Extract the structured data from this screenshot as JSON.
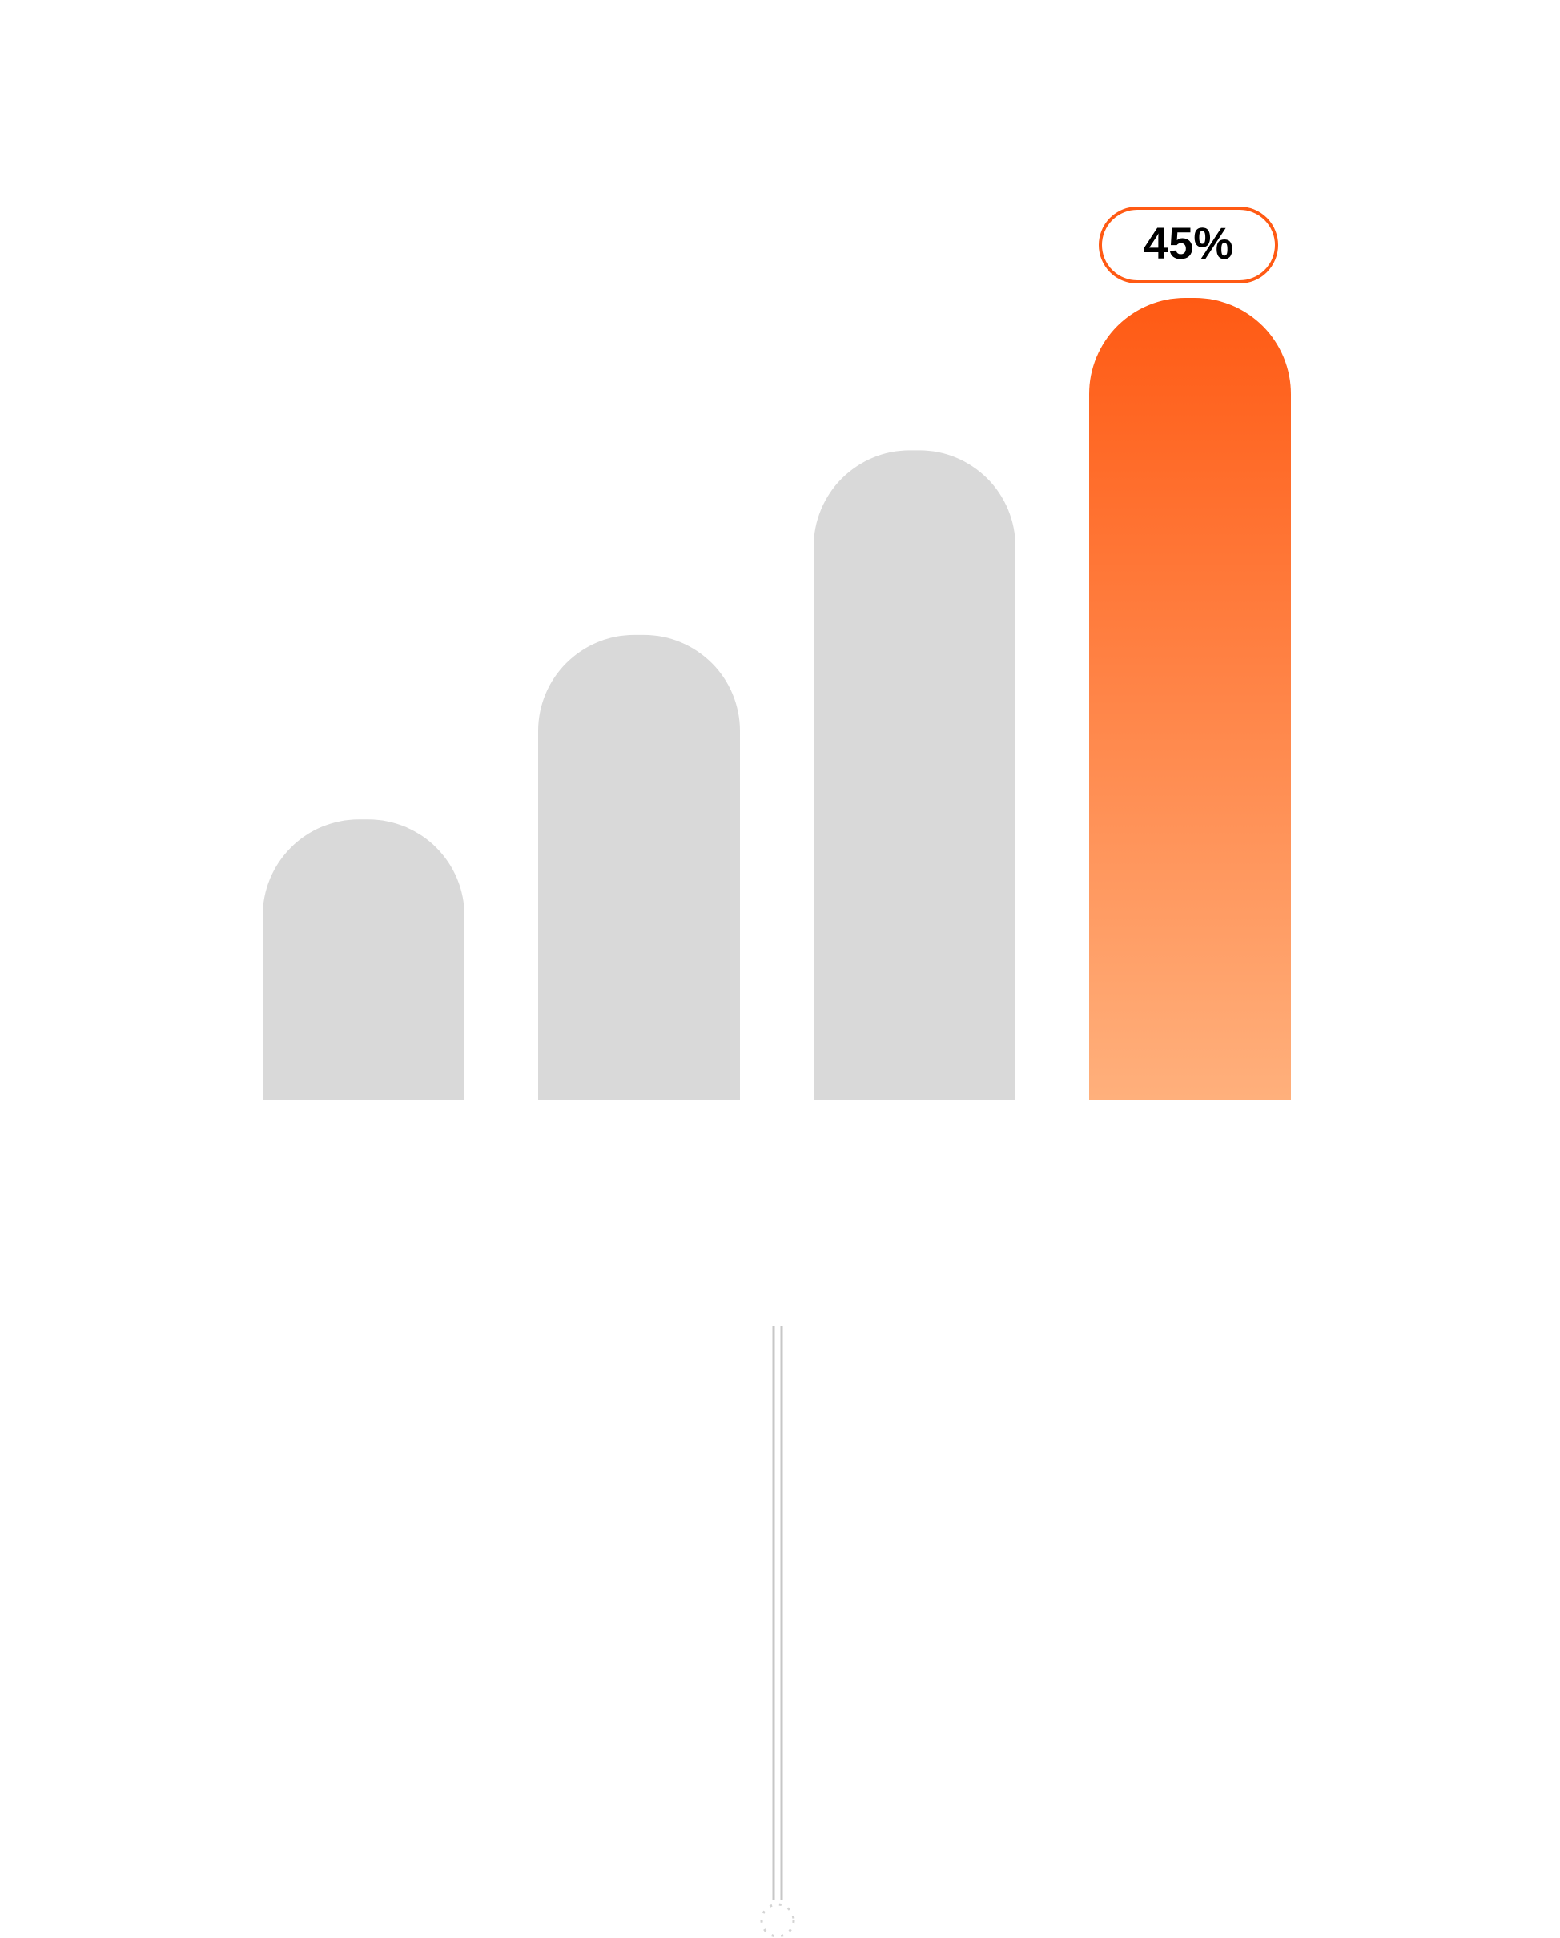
{
  "chart_data": {
    "type": "bar",
    "categories": [
      "",
      "",
      "",
      ""
    ],
    "values": [
      35,
      58,
      81,
      100
    ],
    "ylim": [
      0,
      100
    ],
    "highlight_index": 3,
    "highlight_label": "45%",
    "grid": false,
    "title": "",
    "xlabel": "",
    "ylabel": ""
  },
  "colors": {
    "bar_default": "#d9d9d9",
    "highlight_top": "#ff5a14",
    "highlight_bottom": "#ffb07c",
    "label_border": "#ff5a14",
    "stem": "#c7c7c7",
    "background": "#ffffff"
  },
  "icons": {
    "stem_end": "dotted-circle-icon"
  }
}
